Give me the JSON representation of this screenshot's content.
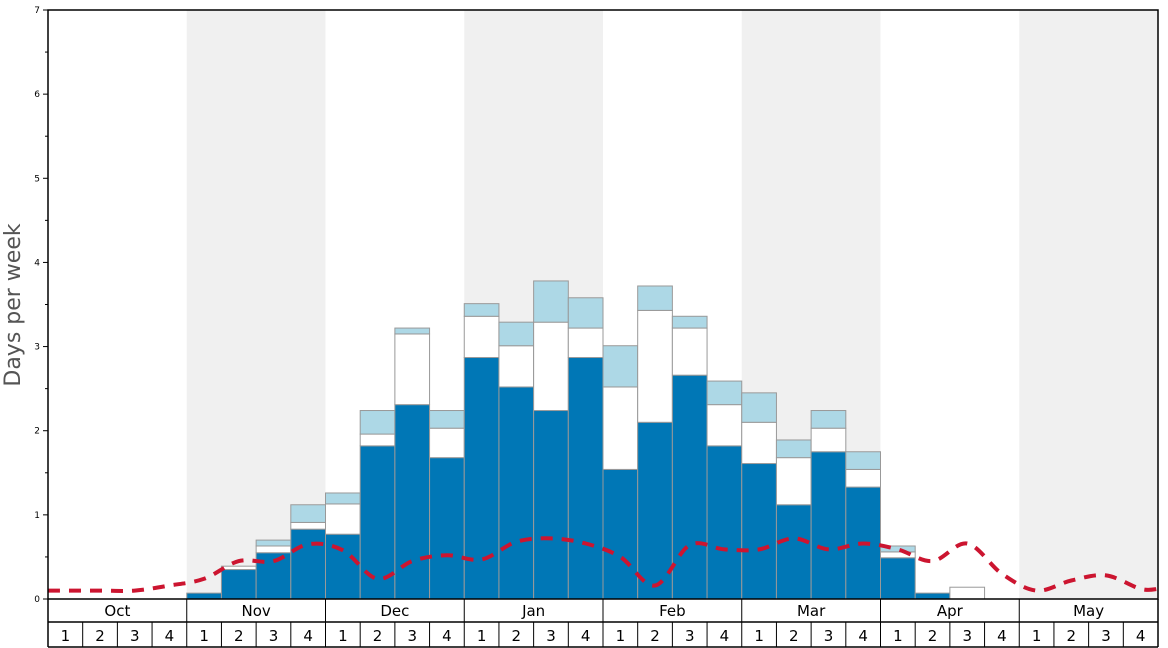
{
  "chart_data": {
    "type": "bar",
    "ylabel": "Days per week",
    "ylim": [
      0,
      7
    ],
    "yticks": [
      0,
      1,
      2,
      3,
      4,
      5,
      6,
      7
    ],
    "months": [
      "Oct",
      "Nov",
      "Dec",
      "Jan",
      "Feb",
      "Mar",
      "Apr",
      "May"
    ],
    "weeks": [
      "1",
      "2",
      "3",
      "4"
    ],
    "categories": [
      "Oct 1",
      "Oct 2",
      "Oct 3",
      "Oct 4",
      "Nov 1",
      "Nov 2",
      "Nov 3",
      "Nov 4",
      "Dec 1",
      "Dec 2",
      "Dec 3",
      "Dec 4",
      "Jan 1",
      "Jan 2",
      "Jan 3",
      "Jan 4",
      "Feb 1",
      "Feb 2",
      "Feb 3",
      "Feb 4",
      "Mar 1",
      "Mar 2",
      "Mar 3",
      "Mar 4",
      "Apr 1",
      "Apr 2",
      "Apr 3",
      "Apr 4",
      "May 1",
      "May 2",
      "May 3",
      "May 4"
    ],
    "series": [
      {
        "color": "#0077b6",
        "values": [
          0,
          0,
          0,
          0,
          0.07,
          0.35,
          0.55,
          0.83,
          0.77,
          1.82,
          2.31,
          1.68,
          2.87,
          2.52,
          2.24,
          2.87,
          1.54,
          2.1,
          2.66,
          1.82,
          1.61,
          1.12,
          1.75,
          1.33,
          0.49,
          0.07,
          0,
          0,
          0,
          0,
          0,
          0
        ]
      },
      {
        "color": "#ffffff",
        "values": [
          0,
          0,
          0,
          0,
          0,
          0.04,
          0.08,
          0.08,
          0.36,
          0.14,
          0.84,
          0.35,
          0.49,
          0.49,
          1.05,
          0.35,
          0.98,
          1.33,
          0.56,
          0.49,
          0.49,
          0.56,
          0.28,
          0.21,
          0.07,
          0,
          0.14,
          0,
          0,
          0,
          0,
          0
        ]
      },
      {
        "color": "#add8e6",
        "values": [
          0,
          0,
          0,
          0,
          0,
          0,
          0.07,
          0.21,
          0.13,
          0.28,
          0.07,
          0.21,
          0.15,
          0.28,
          0.49,
          0.36,
          0.49,
          0.29,
          0.14,
          0.28,
          0.35,
          0.21,
          0.21,
          0.21,
          0.07,
          0,
          0,
          0,
          0,
          0,
          0,
          0
        ]
      }
    ],
    "trend": {
      "color": "#cc1530",
      "style": "dashed",
      "values": [
        0.1,
        0.1,
        0.1,
        0.16,
        0.24,
        0.45,
        0.45,
        0.65,
        0.58,
        0.24,
        0.45,
        0.52,
        0.47,
        0.68,
        0.72,
        0.66,
        0.5,
        0.16,
        0.64,
        0.59,
        0.59,
        0.72,
        0.59,
        0.66,
        0.59,
        0.45,
        0.66,
        0.3,
        0.1,
        0.22,
        0.28,
        0.12
      ]
    },
    "band_colors": [
      "#ffffff",
      "#f0f0f0"
    ],
    "grid": false
  }
}
